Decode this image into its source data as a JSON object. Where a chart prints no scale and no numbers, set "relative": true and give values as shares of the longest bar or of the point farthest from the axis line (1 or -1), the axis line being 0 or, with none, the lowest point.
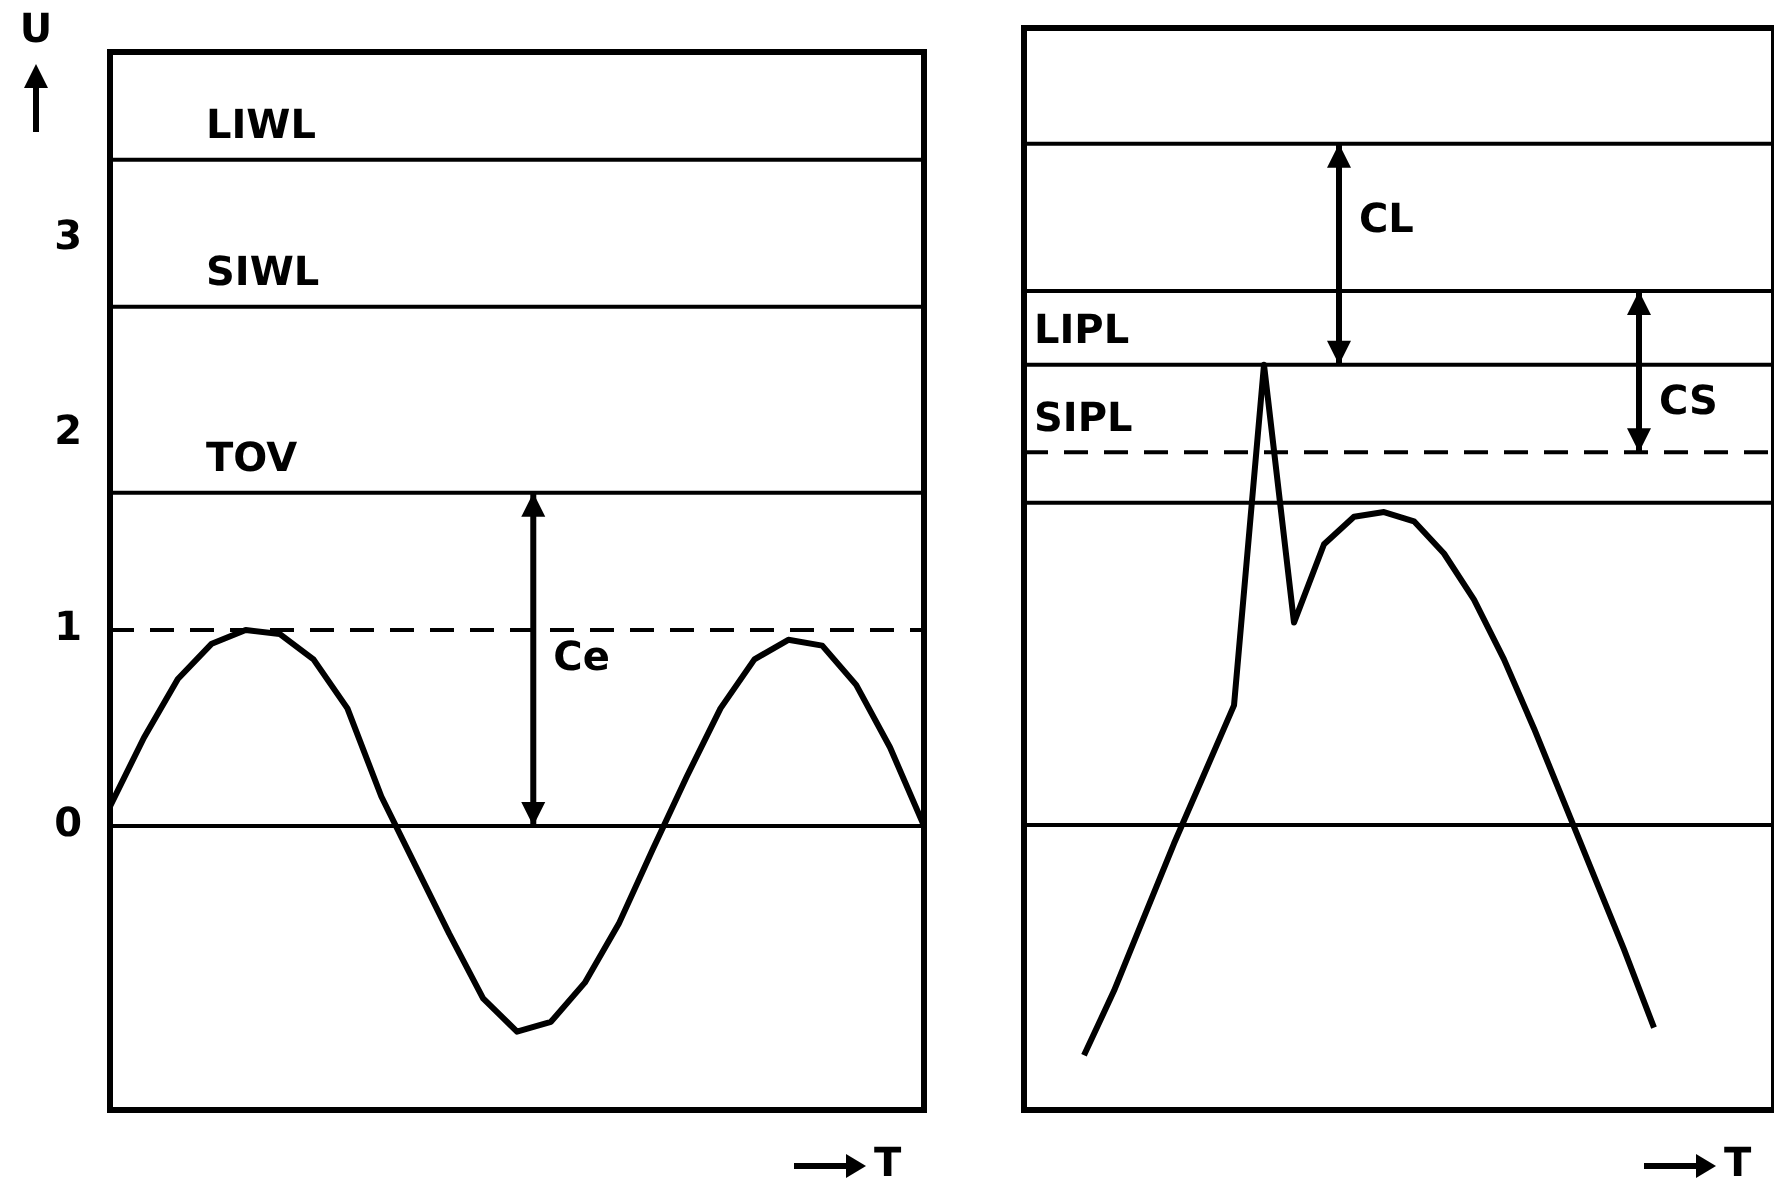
{
  "chart_data": [
    {
      "type": "line",
      "xlabel": "T",
      "ylabel": "U",
      "categories": [
        null,
        null,
        null,
        null,
        null,
        null,
        null,
        null,
        null,
        null,
        null,
        null,
        null,
        null,
        null,
        null,
        null,
        null,
        null,
        null,
        null,
        null,
        null,
        null,
        null
      ],
      "series": [
        {
          "color": "#000000",
          "values": [
            0.1,
            0.45,
            0.75,
            0.93,
            1.0,
            0.98,
            0.85,
            0.6,
            0.15,
            -0.2,
            -0.55,
            -0.88,
            -1.05,
            -1.0,
            -0.8,
            -0.5,
            -0.12,
            0.25,
            0.6,
            0.85,
            0.95,
            0.92,
            0.72,
            0.4,
            0.0
          ]
        }
      ],
      "ylim": [
        -1.45,
        3.95
      ],
      "yticks": [
        0,
        1,
        2,
        3
      ],
      "tick_labels": "y",
      "ref_lines": [
        {
          "axis": "y",
          "value": 3.4,
          "label": "LIWL",
          "color": "#000000",
          "line_style": "solid"
        },
        {
          "axis": "y",
          "value": 2.65,
          "label": "SIWL",
          "color": "#000000",
          "line_style": "solid"
        },
        {
          "axis": "y",
          "value": 1.7,
          "label": "TOV",
          "color": "#000000",
          "line_style": "solid"
        },
        {
          "axis": "y",
          "value": 1.0,
          "color": "#000000",
          "line_style": "dashed"
        },
        {
          "axis": "y",
          "value": 0,
          "color": "#000000",
          "line_style": "solid"
        }
      ],
      "annotations": [
        "Ce"
      ],
      "grid": false,
      "legend": false,
      "marker": "none",
      "line_style": "solid"
    },
    {
      "type": "line",
      "xlabel": "T",
      "categories": [
        null,
        null,
        null,
        null,
        null,
        null,
        null,
        null,
        null,
        null,
        null,
        null,
        null,
        null,
        null,
        null,
        null,
        null,
        null,
        null,
        null,
        null,
        null,
        null,
        null,
        null
      ],
      "series": [
        {
          "color": "#000000",
          "values": [
            null,
            null,
            -0.5,
            -0.36,
            -0.2,
            -0.04,
            0.11,
            0.26,
            1,
            0.44,
            0.61,
            0.67,
            0.68,
            0.66,
            0.59,
            0.49,
            0.36,
            0.21,
            0.05,
            -0.11,
            -0.27,
            -0.44,
            null,
            null,
            null,
            null
          ]
        }
      ],
      "relative": true,
      "tick_labels": false,
      "ref_lines": [
        {
          "axis": "y",
          "value": 1.48,
          "color": "#000000",
          "line_style": "solid"
        },
        {
          "axis": "y",
          "value": 1.16,
          "color": "#000000",
          "line_style": "solid"
        },
        {
          "axis": "y",
          "value": 1.0,
          "label": "LIPL",
          "color": "#000000",
          "line_style": "solid"
        },
        {
          "axis": "y",
          "value": 0.81,
          "label": "SIPL",
          "color": "#000000",
          "line_style": "dashed"
        },
        {
          "axis": "y",
          "value": 0.7,
          "color": "#000000",
          "line_style": "solid"
        },
        {
          "axis": "y",
          "value": 0,
          "color": "#000000",
          "line_style": "solid"
        }
      ],
      "annotations": [
        "CL",
        "CS"
      ],
      "grid": false,
      "legend": false,
      "marker": "none",
      "line_style": "solid"
    }
  ]
}
